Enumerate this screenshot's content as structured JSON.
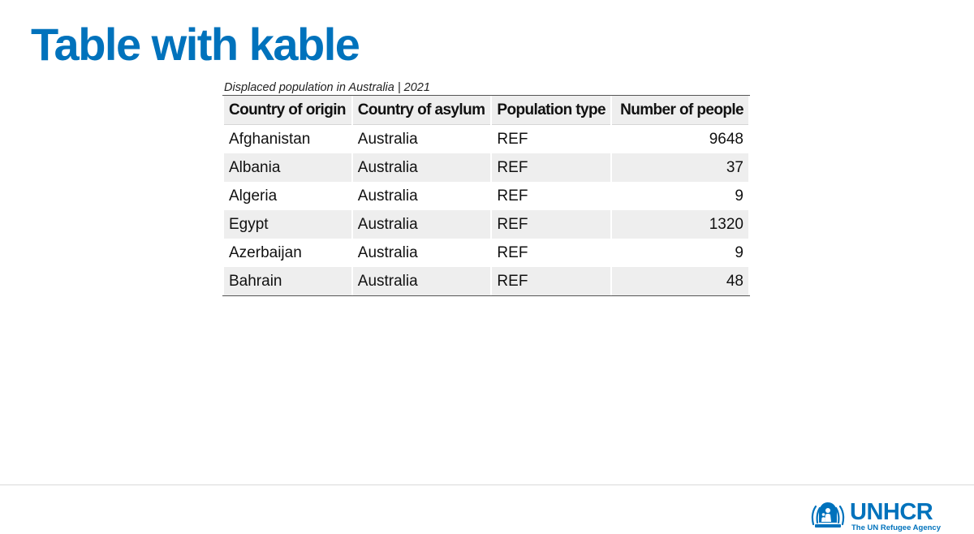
{
  "slide": {
    "title": "Table with kable"
  },
  "table": {
    "caption": "Displaced population in Australia | 2021",
    "headers": {
      "origin": "Country of origin",
      "asylum": "Country of asylum",
      "type": "Population type",
      "count": "Number of people"
    },
    "rows": [
      {
        "origin": "Afghanistan",
        "asylum": "Australia",
        "type": "REF",
        "count": "9648"
      },
      {
        "origin": "Albania",
        "asylum": "Australia",
        "type": "REF",
        "count": "37"
      },
      {
        "origin": "Algeria",
        "asylum": "Australia",
        "type": "REF",
        "count": "9"
      },
      {
        "origin": "Egypt",
        "asylum": "Australia",
        "type": "REF",
        "count": "1320"
      },
      {
        "origin": "Azerbaijan",
        "asylum": "Australia",
        "type": "REF",
        "count": "9"
      },
      {
        "origin": "Bahrain",
        "asylum": "Australia",
        "type": "REF",
        "count": "48"
      }
    ]
  },
  "footer": {
    "logo_name": "UNHCR",
    "logo_tagline": "The UN Refugee Agency",
    "logo_icon": "unhcr-emblem-icon",
    "brand_color": "#0072bc"
  }
}
